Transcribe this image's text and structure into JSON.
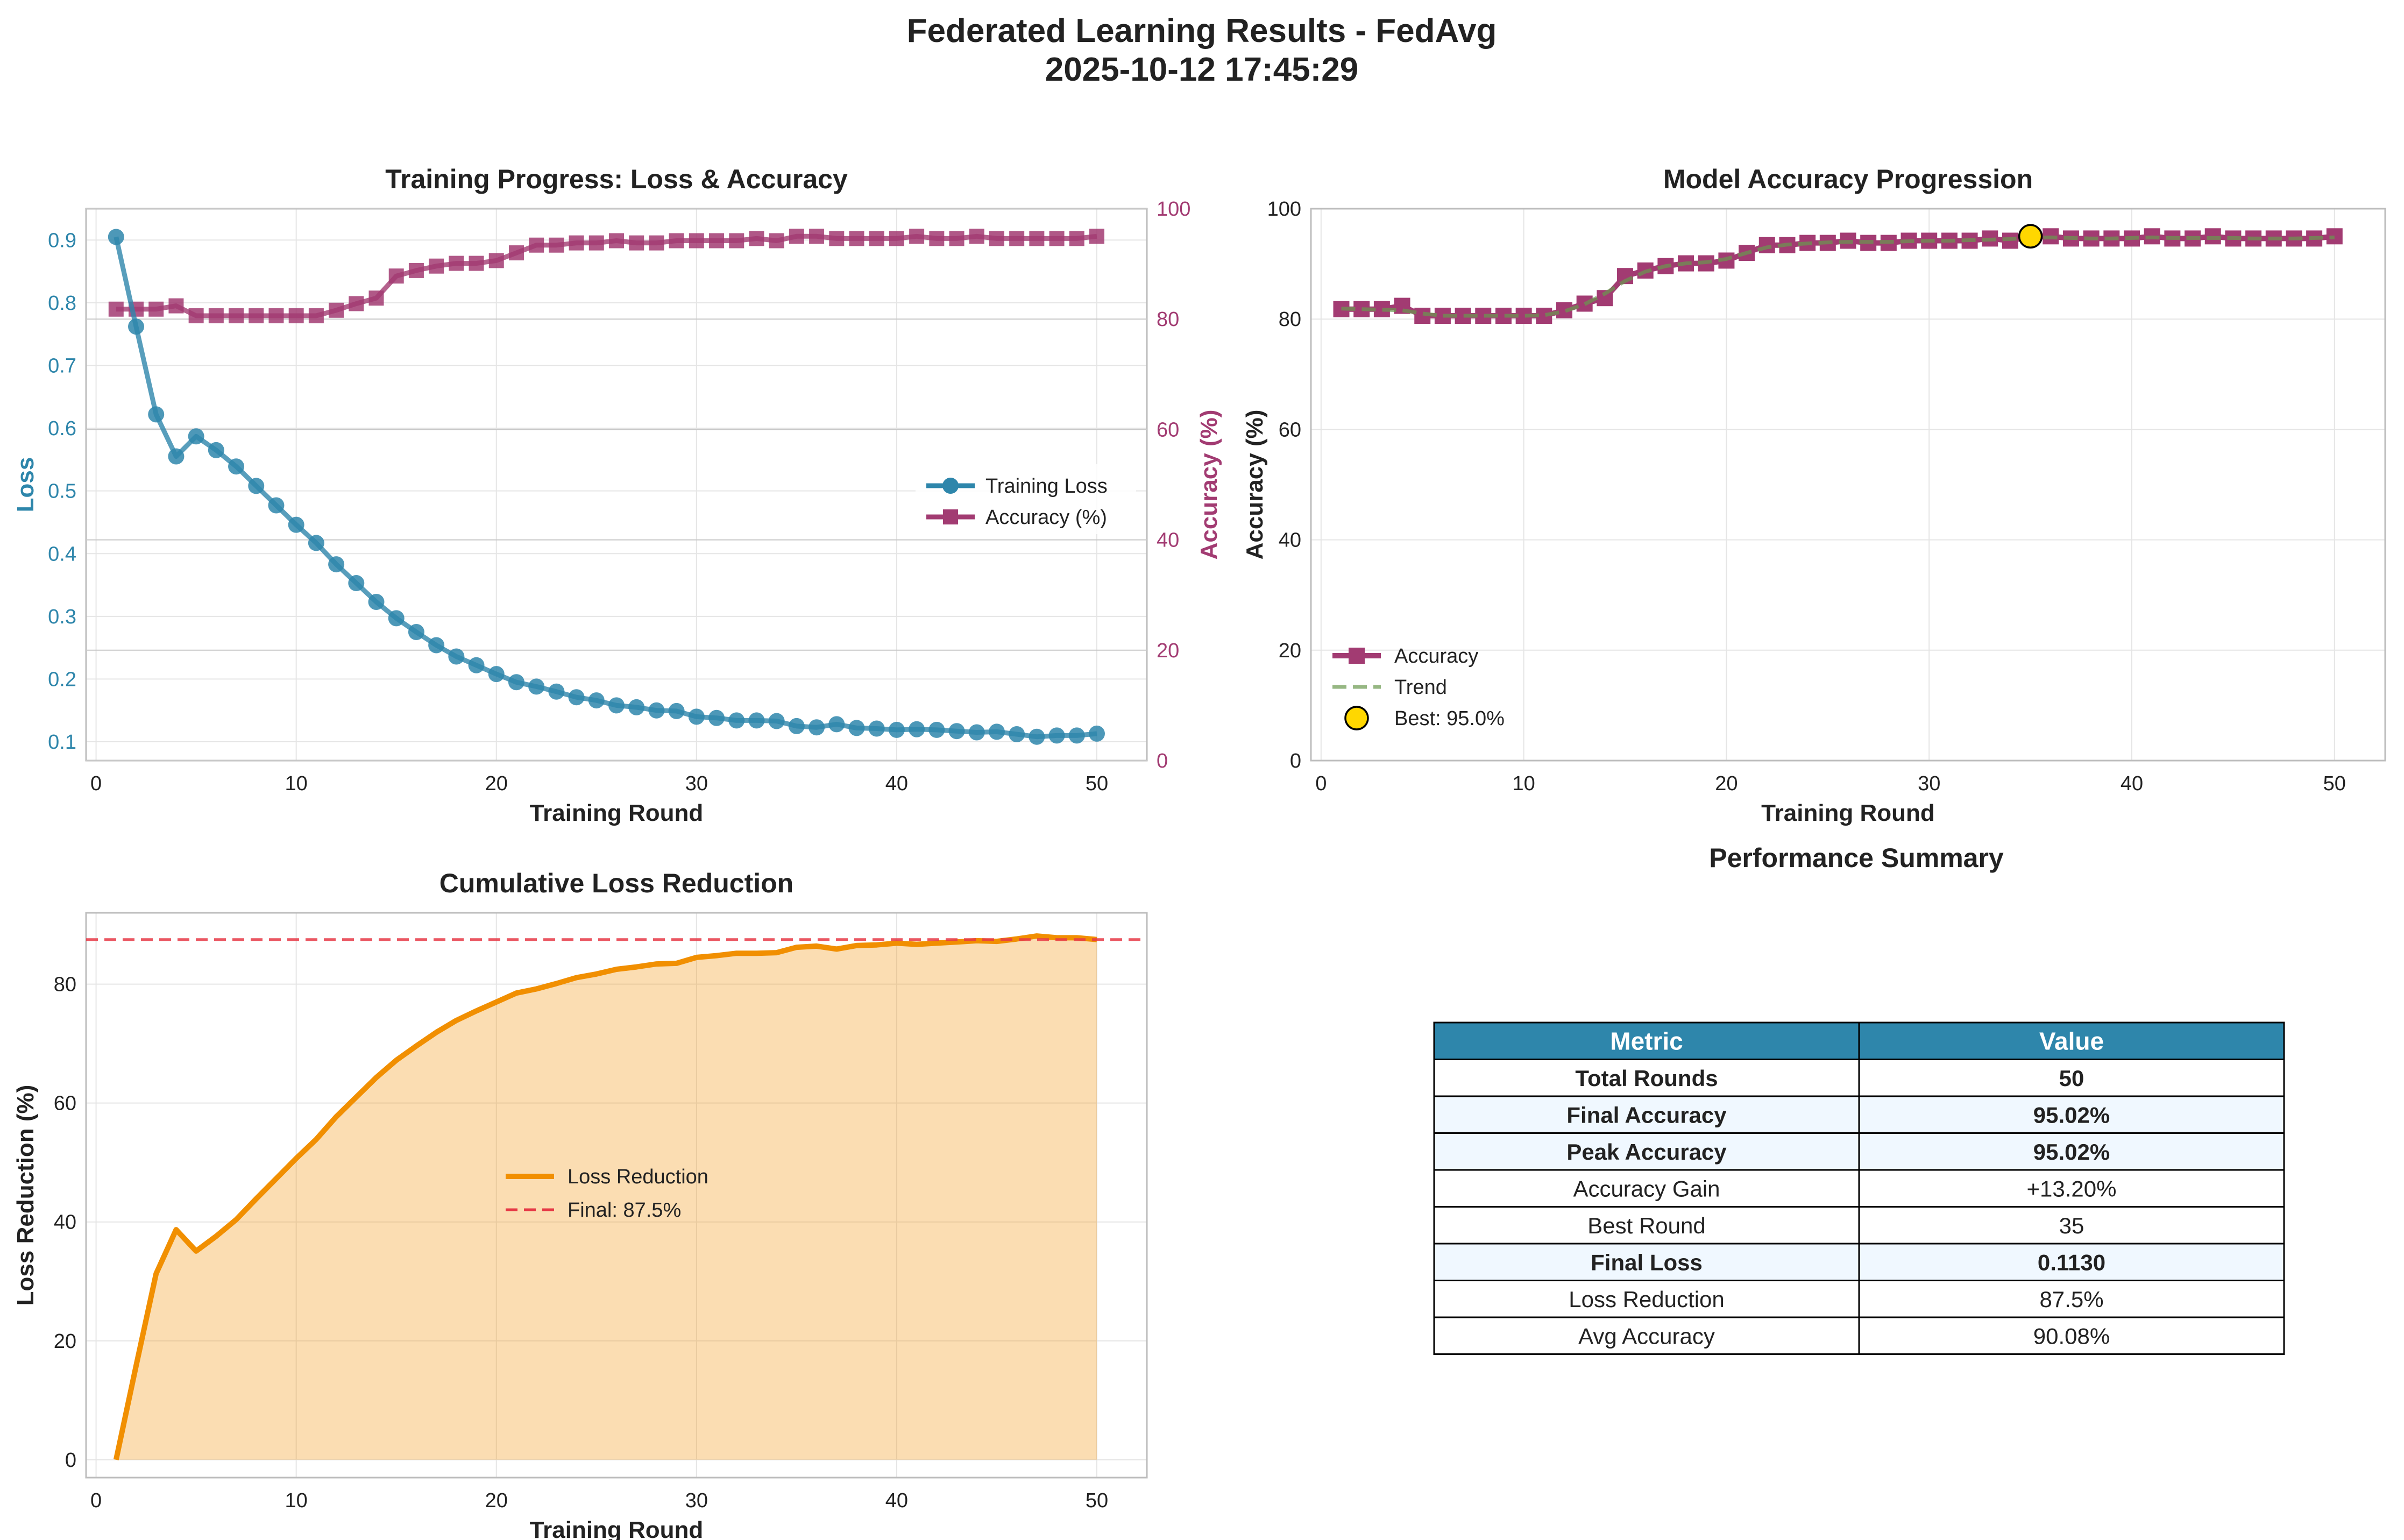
{
  "figure": {
    "title_line1": "Federated Learning Results - FedAvg",
    "title_line2": "2025-10-12 17:45:29"
  },
  "colors": {
    "loss": "#2E86AB",
    "accuracy": "#A23B72",
    "trend": "#6A994E",
    "best": "#FFD700",
    "reduction": "#F18F01",
    "final_line": "#E63946",
    "table_header": "#2E86AB",
    "table_alt_row": "#F0F8FF",
    "grid": "#E5E5E5",
    "axis_text": "#222222"
  },
  "chart_data": [
    {
      "id": "training-progress",
      "type": "line",
      "title": "Training Progress: Loss & Accuracy",
      "xlabel": "Training Round",
      "ylabel": "Loss",
      "ylabel_right": "Accuracy (%)",
      "xlim": [
        -0.5,
        52.5
      ],
      "ylim": [
        0.07,
        0.95
      ],
      "ylim_right": [
        0,
        100
      ],
      "xticks": [
        0,
        10,
        20,
        30,
        40,
        50
      ],
      "yticks": [
        0.1,
        0.2,
        0.3,
        0.4,
        0.5,
        0.6,
        0.7,
        0.8,
        0.9
      ],
      "yticks_right": [
        0,
        20,
        40,
        60,
        80,
        100
      ],
      "grid": true,
      "legend": "center-right",
      "x": [
        1,
        2,
        3,
        4,
        5,
        6,
        7,
        8,
        9,
        10,
        11,
        12,
        13,
        14,
        15,
        16,
        17,
        18,
        19,
        20,
        21,
        22,
        23,
        24,
        25,
        26,
        27,
        28,
        29,
        30,
        31,
        32,
        33,
        34,
        35,
        36,
        37,
        38,
        39,
        40,
        41,
        42,
        43,
        44,
        45,
        46,
        47,
        48,
        49,
        50
      ],
      "series": [
        {
          "name": "Training Loss",
          "axis": "left",
          "values": [
            0.905,
            0.762,
            0.622,
            0.555,
            0.587,
            0.565,
            0.539,
            0.508,
            0.477,
            0.446,
            0.417,
            0.383,
            0.353,
            0.323,
            0.297,
            0.275,
            0.254,
            0.236,
            0.222,
            0.208,
            0.195,
            0.188,
            0.18,
            0.171,
            0.166,
            0.158,
            0.155,
            0.15,
            0.149,
            0.14,
            0.138,
            0.134,
            0.134,
            0.133,
            0.125,
            0.123,
            0.128,
            0.122,
            0.121,
            0.119,
            0.12,
            0.119,
            0.117,
            0.115,
            0.116,
            0.112,
            0.108,
            0.11,
            0.11,
            0.113
          ]
        },
        {
          "name": "Accuracy (%)",
          "axis": "right",
          "values": [
            81.8,
            81.8,
            81.8,
            82.4,
            80.6,
            80.6,
            80.6,
            80.6,
            80.6,
            80.6,
            80.6,
            81.6,
            82.8,
            83.8,
            87.8,
            88.8,
            89.6,
            90.1,
            90.1,
            90.6,
            92.0,
            93.4,
            93.4,
            93.8,
            93.8,
            94.2,
            93.8,
            93.8,
            94.2,
            94.2,
            94.2,
            94.2,
            94.6,
            94.2,
            95.0,
            95.0,
            94.6,
            94.6,
            94.6,
            94.6,
            95.0,
            94.6,
            94.6,
            95.0,
            94.6,
            94.6,
            94.6,
            94.6,
            94.6,
            95.0
          ]
        }
      ]
    },
    {
      "id": "accuracy-progression",
      "type": "line",
      "title": "Model Accuracy Progression",
      "xlabel": "Training Round",
      "ylabel": "Accuracy (%)",
      "xlim": [
        -0.5,
        52.5
      ],
      "ylim": [
        0,
        100
      ],
      "xticks": [
        0,
        10,
        20,
        30,
        40,
        50
      ],
      "yticks": [
        0,
        20,
        40,
        60,
        80,
        100
      ],
      "grid": true,
      "legend": "lower-left",
      "x": [
        1,
        2,
        3,
        4,
        5,
        6,
        7,
        8,
        9,
        10,
        11,
        12,
        13,
        14,
        15,
        16,
        17,
        18,
        19,
        20,
        21,
        22,
        23,
        24,
        25,
        26,
        27,
        28,
        29,
        30,
        31,
        32,
        33,
        34,
        35,
        36,
        37,
        38,
        39,
        40,
        41,
        42,
        43,
        44,
        45,
        46,
        47,
        48,
        49,
        50
      ],
      "series": [
        {
          "name": "Accuracy",
          "values": [
            81.8,
            81.8,
            81.8,
            82.4,
            80.6,
            80.6,
            80.6,
            80.6,
            80.6,
            80.6,
            80.6,
            81.6,
            82.8,
            83.8,
            87.8,
            88.8,
            89.6,
            90.1,
            90.1,
            90.6,
            92.0,
            93.4,
            93.4,
            93.8,
            93.8,
            94.2,
            93.8,
            93.8,
            94.2,
            94.2,
            94.2,
            94.2,
            94.6,
            94.2,
            95.0,
            95.0,
            94.6,
            94.6,
            94.6,
            94.6,
            95.0,
            94.6,
            94.6,
            95.0,
            94.6,
            94.6,
            94.6,
            94.6,
            94.6,
            95.0
          ]
        },
        {
          "name": "Trend",
          "values": [
            81.9,
            81.8,
            81.7,
            81.6,
            81.0,
            80.6,
            80.6,
            80.6,
            80.6,
            80.6,
            80.7,
            81.4,
            82.7,
            84.6,
            86.9,
            88.6,
            89.6,
            90.1,
            90.3,
            90.9,
            92.0,
            93.0,
            93.5,
            93.7,
            93.9,
            94.0,
            94.0,
            94.0,
            94.1,
            94.2,
            94.2,
            94.3,
            94.4,
            94.5,
            94.7,
            94.8,
            94.7,
            94.6,
            94.6,
            94.7,
            94.8,
            94.7,
            94.7,
            94.7,
            94.7,
            94.6,
            94.6,
            94.6,
            94.7,
            94.8
          ]
        }
      ],
      "best": {
        "label": "Best: 95.0%",
        "x": 35,
        "y": 95.0
      }
    },
    {
      "id": "loss-reduction",
      "type": "area",
      "title": "Cumulative Loss Reduction",
      "xlabel": "Training Round",
      "ylabel": "Loss Reduction (%)",
      "xlim": [
        -0.5,
        52.5
      ],
      "ylim": [
        -3,
        92
      ],
      "xticks": [
        0,
        10,
        20,
        30,
        40,
        50
      ],
      "yticks": [
        0,
        20,
        40,
        60,
        80
      ],
      "grid": true,
      "legend": "center",
      "x": [
        1,
        2,
        3,
        4,
        5,
        6,
        7,
        8,
        9,
        10,
        11,
        12,
        13,
        14,
        15,
        16,
        17,
        18,
        19,
        20,
        21,
        22,
        23,
        24,
        25,
        26,
        27,
        28,
        29,
        30,
        31,
        32,
        33,
        34,
        35,
        36,
        37,
        38,
        39,
        40,
        41,
        42,
        43,
        44,
        45,
        46,
        47,
        48,
        49,
        50
      ],
      "series": [
        {
          "name": "Loss Reduction",
          "values": [
            0,
            15.8,
            31.3,
            38.7,
            35.1,
            37.6,
            40.4,
            43.9,
            47.3,
            50.7,
            53.9,
            57.7,
            61.0,
            64.3,
            67.2,
            69.6,
            71.9,
            73.9,
            75.5,
            77.0,
            78.5,
            79.2,
            80.1,
            81.1,
            81.7,
            82.5,
            82.9,
            83.4,
            83.5,
            84.5,
            84.8,
            85.2,
            85.2,
            85.3,
            86.2,
            86.4,
            85.9,
            86.5,
            86.6,
            86.9,
            86.7,
            86.9,
            87.1,
            87.3,
            87.2,
            87.6,
            88.1,
            87.8,
            87.8,
            87.5
          ]
        }
      ],
      "final": {
        "label": "Final: 87.5%",
        "value": 87.5
      }
    }
  ],
  "summary_table": {
    "title": "Performance Summary",
    "header": [
      "Metric",
      "Value"
    ],
    "rows": [
      {
        "metric": "Total Rounds",
        "value": "50",
        "bold": true,
        "alt": false
      },
      {
        "metric": "Final Accuracy",
        "value": "95.02%",
        "bold": true,
        "alt": true
      },
      {
        "metric": "Peak Accuracy",
        "value": "95.02%",
        "bold": true,
        "alt": true
      },
      {
        "metric": "Accuracy Gain",
        "value": "+13.20%",
        "bold": false,
        "alt": false
      },
      {
        "metric": "Best Round",
        "value": "35",
        "bold": false,
        "alt": false
      },
      {
        "metric": "Final Loss",
        "value": "0.1130",
        "bold": true,
        "alt": true
      },
      {
        "metric": "Loss Reduction",
        "value": "87.5%",
        "bold": false,
        "alt": false
      },
      {
        "metric": "Avg Accuracy",
        "value": "90.08%",
        "bold": false,
        "alt": false
      }
    ]
  }
}
